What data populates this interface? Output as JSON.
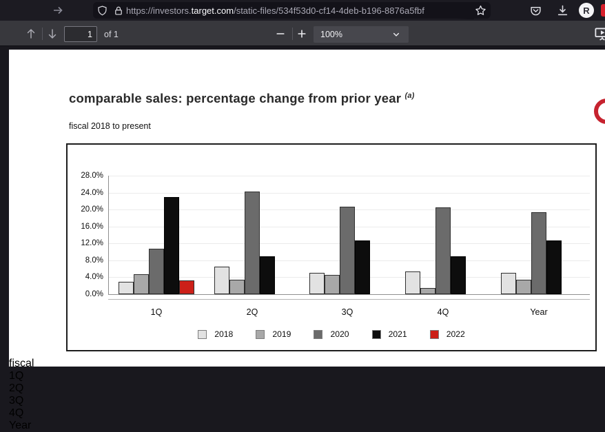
{
  "browser": {
    "url_prefix": "https://investors.",
    "url_domain": "target.com",
    "url_path": "/static-files/534f53d0-cf14-4deb-b196-8876a5fbf",
    "avatar_initial": "R"
  },
  "pdf_toolbar": {
    "page_number": "1",
    "page_count_label": "of 1",
    "zoom_level": "100%"
  },
  "document": {
    "title": "comparable sales: percentage change from prior year",
    "title_superscript": "(a)",
    "subtitle": "fiscal 2018 to present",
    "clipped_row_tokens": [
      "fiscal",
      "1Q",
      "2Q",
      "3Q",
      "4Q",
      "Year"
    ]
  },
  "chart_data": {
    "type": "bar",
    "title": "comparable sales: percentage change from prior year (a)",
    "subtitle": "fiscal 2018 to present",
    "categories": [
      "1Q",
      "2Q",
      "3Q",
      "4Q",
      "Year"
    ],
    "series": [
      {
        "name": "2018",
        "color": "#e2e2e2",
        "values": [
          3.0,
          6.5,
          5.1,
          5.3,
          5.0
        ]
      },
      {
        "name": "2019",
        "color": "#a8a8a8",
        "values": [
          4.8,
          3.4,
          4.5,
          1.5,
          3.4
        ]
      },
      {
        "name": "2020",
        "color": "#6b6b6b",
        "values": [
          10.8,
          24.3,
          20.7,
          20.5,
          19.3
        ]
      },
      {
        "name": "2021",
        "color": "#0d0d0d",
        "values": [
          22.9,
          8.9,
          12.7,
          8.9,
          12.7
        ]
      },
      {
        "name": "2022",
        "color": "#cc2018",
        "values": [
          3.3,
          null,
          null,
          null,
          null
        ]
      }
    ],
    "ylim": [
      0,
      28
    ],
    "ytick_step": 4,
    "ytick_labels": [
      "0.0%",
      "4.0%",
      "8.0%",
      "12.0%",
      "16.0%",
      "20.0%",
      "24.0%",
      "28.0%"
    ],
    "grid": true,
    "legend_position": "bottom"
  }
}
